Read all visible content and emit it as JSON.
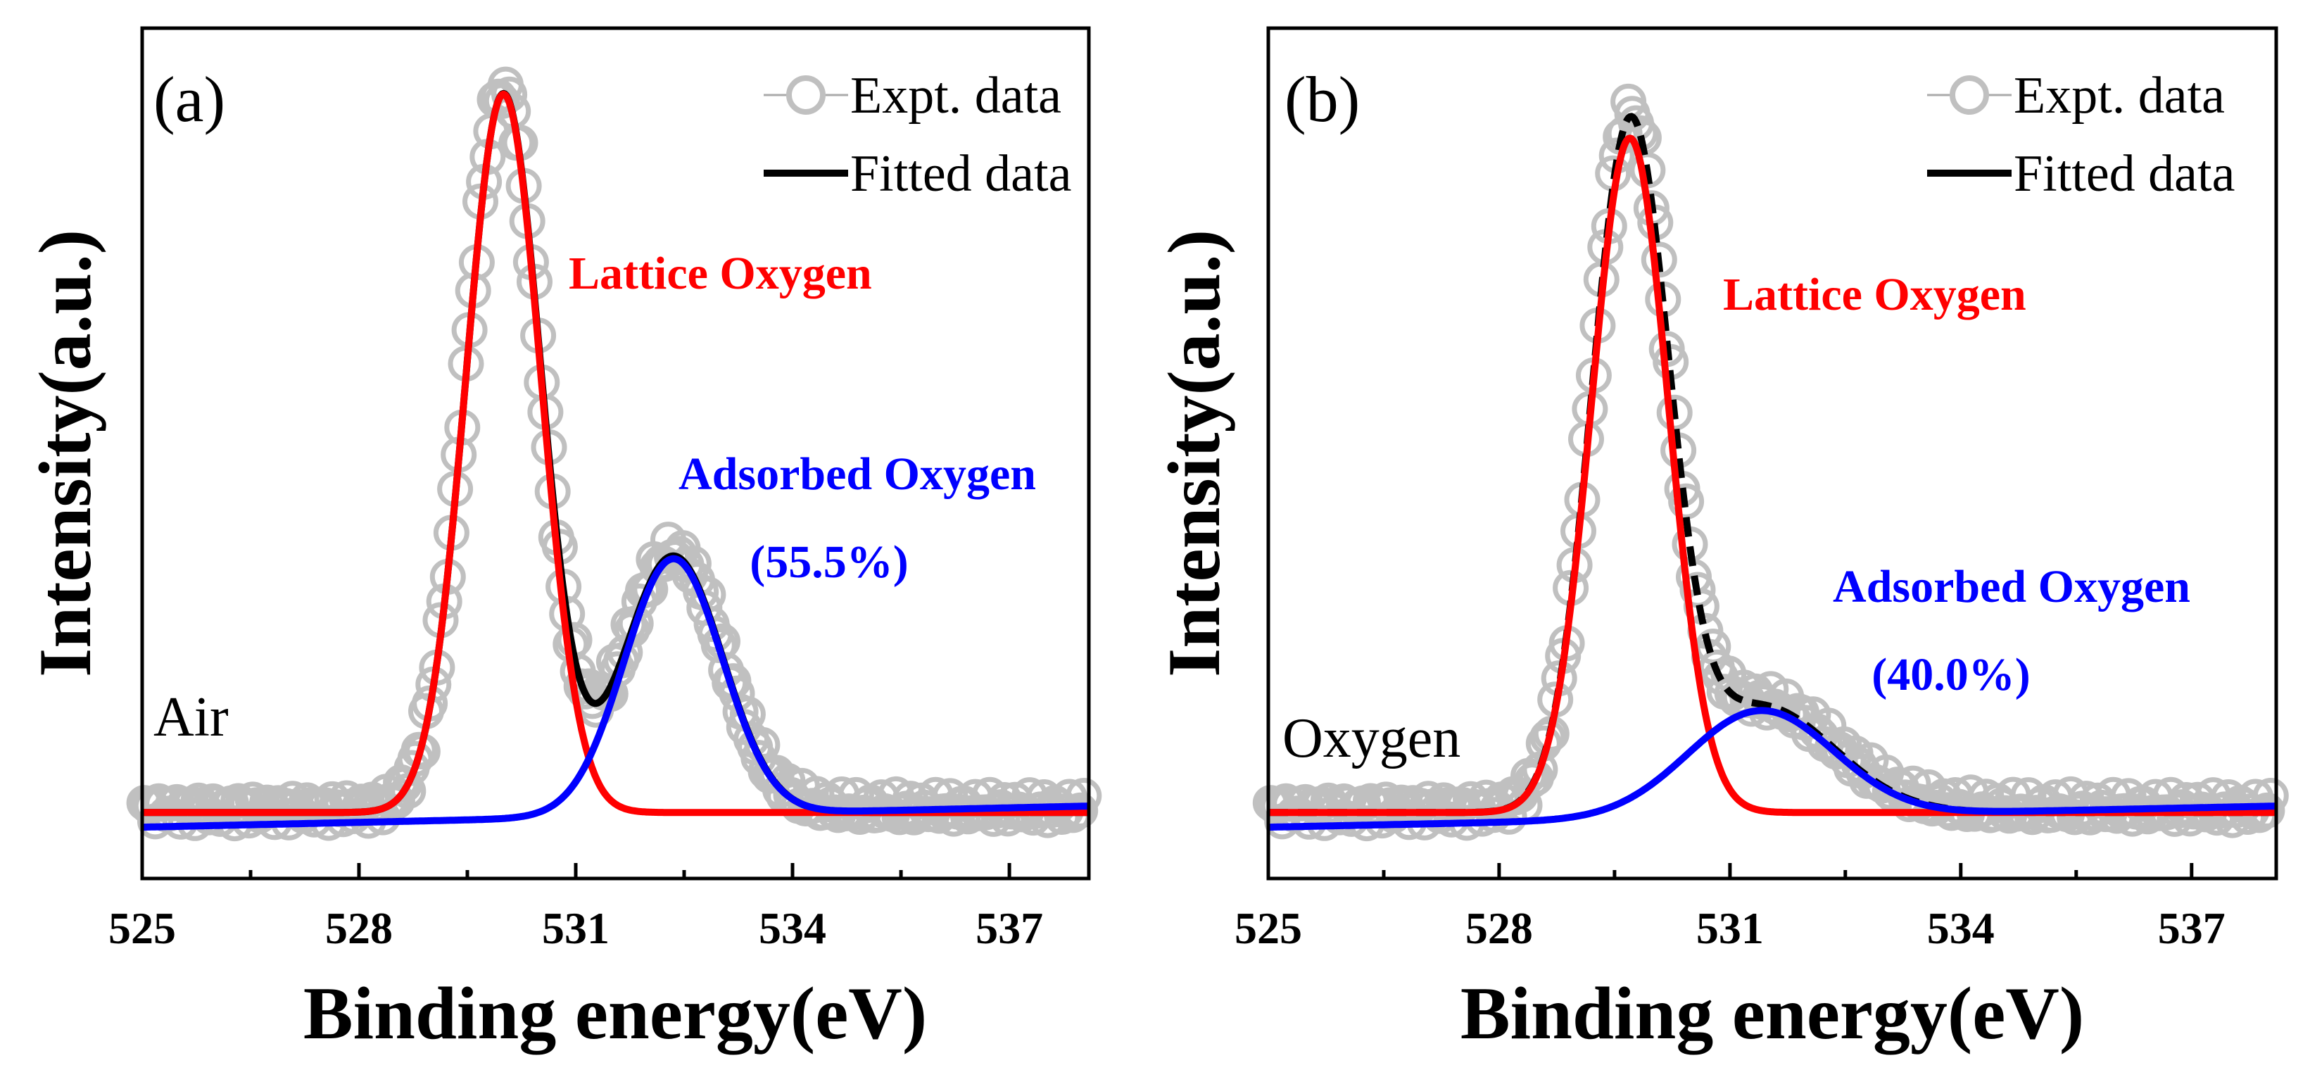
{
  "chart_data": [
    {
      "type": "line",
      "panel_label": "(a)",
      "sample_label": "Air",
      "xlabel": "Binding energy(eV)",
      "ylabel": "Intensity(a.u.)",
      "xlim": [
        525,
        538.1
      ],
      "xticks": [
        525,
        528,
        531,
        534,
        537
      ],
      "ylim": [
        -0.07,
        1.09
      ],
      "legend": {
        "position": "top-right",
        "entries": [
          "Expt. data",
          "Fitted data"
        ]
      },
      "series": [
        {
          "name": "Expt. data",
          "color": "#c0c0c0",
          "marker": "open-circle",
          "baseline": 0.02
        },
        {
          "name": "Fitted data",
          "color": "#000000",
          "baseline": 0.02
        },
        {
          "name": "Lattice Oxygen",
          "color": "#ff0000",
          "center": 530.0,
          "height": 0.98,
          "sigma": 0.52,
          "baseline": 0.02
        },
        {
          "name": "Adsorbed Oxygen",
          "color": "#0000ff",
          "center": 532.35,
          "height": 0.35,
          "sigma": 0.68,
          "baseline": 0.0
        }
      ],
      "annotations": [
        {
          "text": "Lattice Oxygen",
          "color": "#ff0000"
        },
        {
          "text": "Adsorbed Oxygen",
          "color": "#0000ff"
        },
        {
          "text": "(55.5%)",
          "color": "#0000ff"
        }
      ]
    },
    {
      "type": "line",
      "panel_label": "(b)",
      "sample_label": "Oxygen",
      "xlabel": "Binding energy(eV)",
      "ylabel": "Intensity(a.u.)",
      "xlim": [
        525,
        538.1
      ],
      "xticks": [
        525,
        528,
        531,
        534,
        537
      ],
      "ylim": [
        -0.07,
        1.09
      ],
      "legend": {
        "position": "top-right",
        "entries": [
          "Expt. data",
          "Fitted data"
        ]
      },
      "series": [
        {
          "name": "Expt. data",
          "color": "#c0c0c0",
          "marker": "open-circle",
          "baseline": 0.02
        },
        {
          "name": "Fitted data",
          "color": "#000000",
          "dashed": true,
          "baseline": 0.02
        },
        {
          "name": "Lattice Oxygen",
          "color": "#ff0000",
          "center": 529.7,
          "height": 0.92,
          "sigma": 0.5,
          "baseline": 0.02
        },
        {
          "name": "Adsorbed Oxygen",
          "color": "#0000ff",
          "center": 531.4,
          "height": 0.145,
          "sigma": 0.95,
          "baseline": 0.0
        }
      ],
      "annotations": [
        {
          "text": "Lattice Oxygen",
          "color": "#ff0000"
        },
        {
          "text": "Adsorbed Oxygen",
          "color": "#0000ff"
        },
        {
          "text": "(40.0%)",
          "color": "#0000ff"
        }
      ]
    }
  ]
}
